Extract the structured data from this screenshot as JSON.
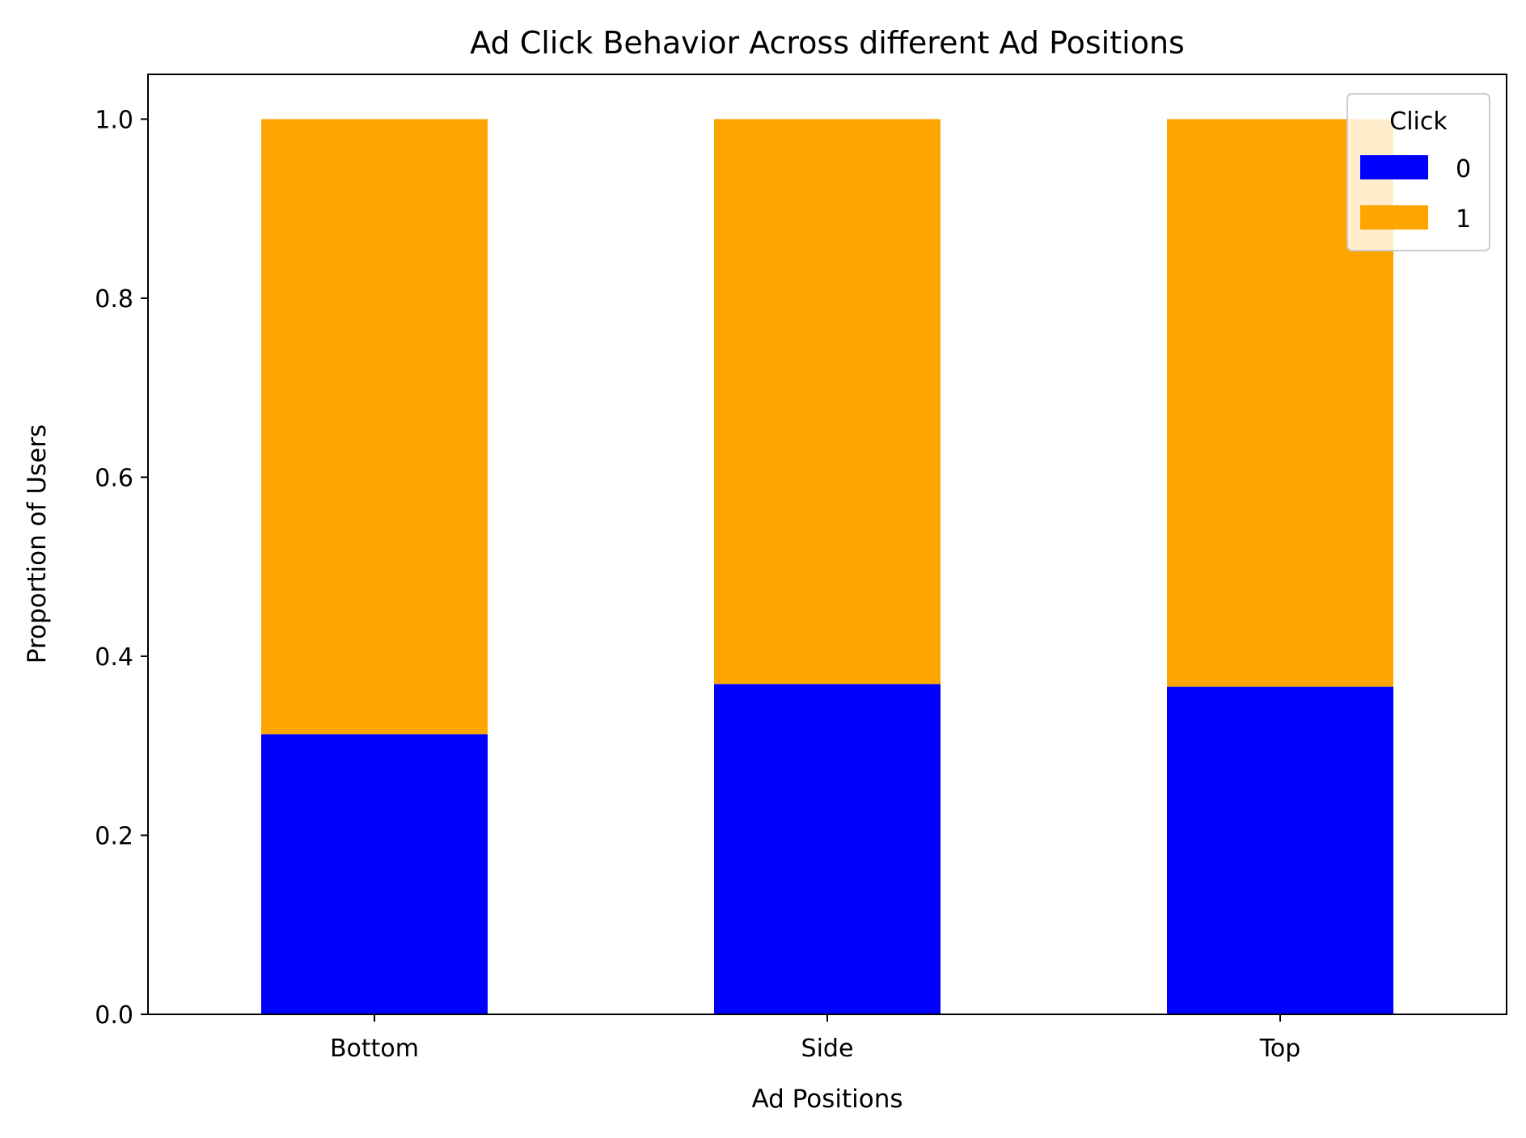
{
  "chart_data": {
    "type": "bar",
    "stacked": true,
    "title": "Ad Click Behavior Across different Ad Positions",
    "xlabel": "Ad Positions",
    "ylabel": "Proportion of Users",
    "categories": [
      "Bottom",
      "Side",
      "Top"
    ],
    "series": [
      {
        "name": "0",
        "color": "#0000ff",
        "values": [
          0.313,
          0.369,
          0.366
        ]
      },
      {
        "name": "1",
        "color": "#ffa500",
        "values": [
          0.687,
          0.631,
          0.634
        ]
      }
    ],
    "ylim": [
      0,
      1.05
    ],
    "yticks": [
      "0.0",
      "0.2",
      "0.4",
      "0.6",
      "0.8",
      "1.0"
    ],
    "legend": {
      "title": "Click",
      "position": "top-right"
    },
    "grid": false
  }
}
